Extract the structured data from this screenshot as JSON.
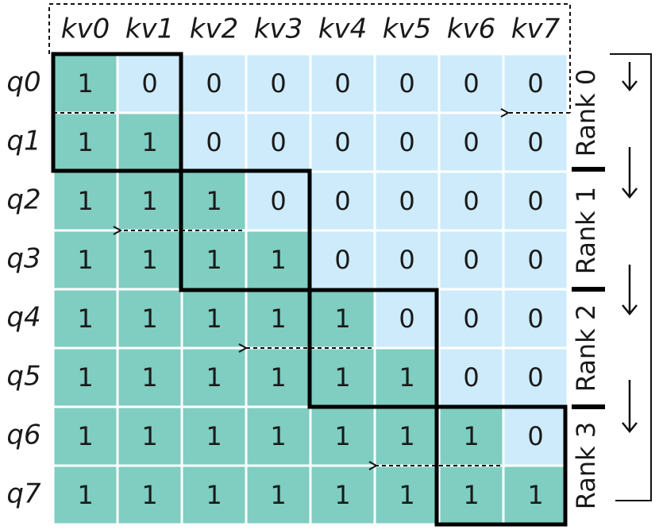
{
  "columns": [
    "kv0",
    "kv1",
    "kv2",
    "kv3",
    "kv4",
    "kv5",
    "kv6",
    "kv7"
  ],
  "rows": [
    {
      "label": "q0",
      "cells": [
        1,
        0,
        0,
        0,
        0,
        0,
        0,
        0
      ]
    },
    {
      "label": "q1",
      "cells": [
        1,
        1,
        0,
        0,
        0,
        0,
        0,
        0
      ]
    },
    {
      "label": "q2",
      "cells": [
        1,
        1,
        1,
        0,
        0,
        0,
        0,
        0
      ]
    },
    {
      "label": "q3",
      "cells": [
        1,
        1,
        1,
        1,
        0,
        0,
        0,
        0
      ]
    },
    {
      "label": "q4",
      "cells": [
        1,
        1,
        1,
        1,
        1,
        0,
        0,
        0
      ]
    },
    {
      "label": "q5",
      "cells": [
        1,
        1,
        1,
        1,
        1,
        1,
        0,
        0
      ]
    },
    {
      "label": "q6",
      "cells": [
        1,
        1,
        1,
        1,
        1,
        1,
        1,
        0
      ]
    },
    {
      "label": "q7",
      "cells": [
        1,
        1,
        1,
        1,
        1,
        1,
        1,
        1
      ]
    }
  ],
  "ranks": [
    "Rank 0",
    "Rank 1",
    "Rank 2",
    "Rank 3"
  ]
}
